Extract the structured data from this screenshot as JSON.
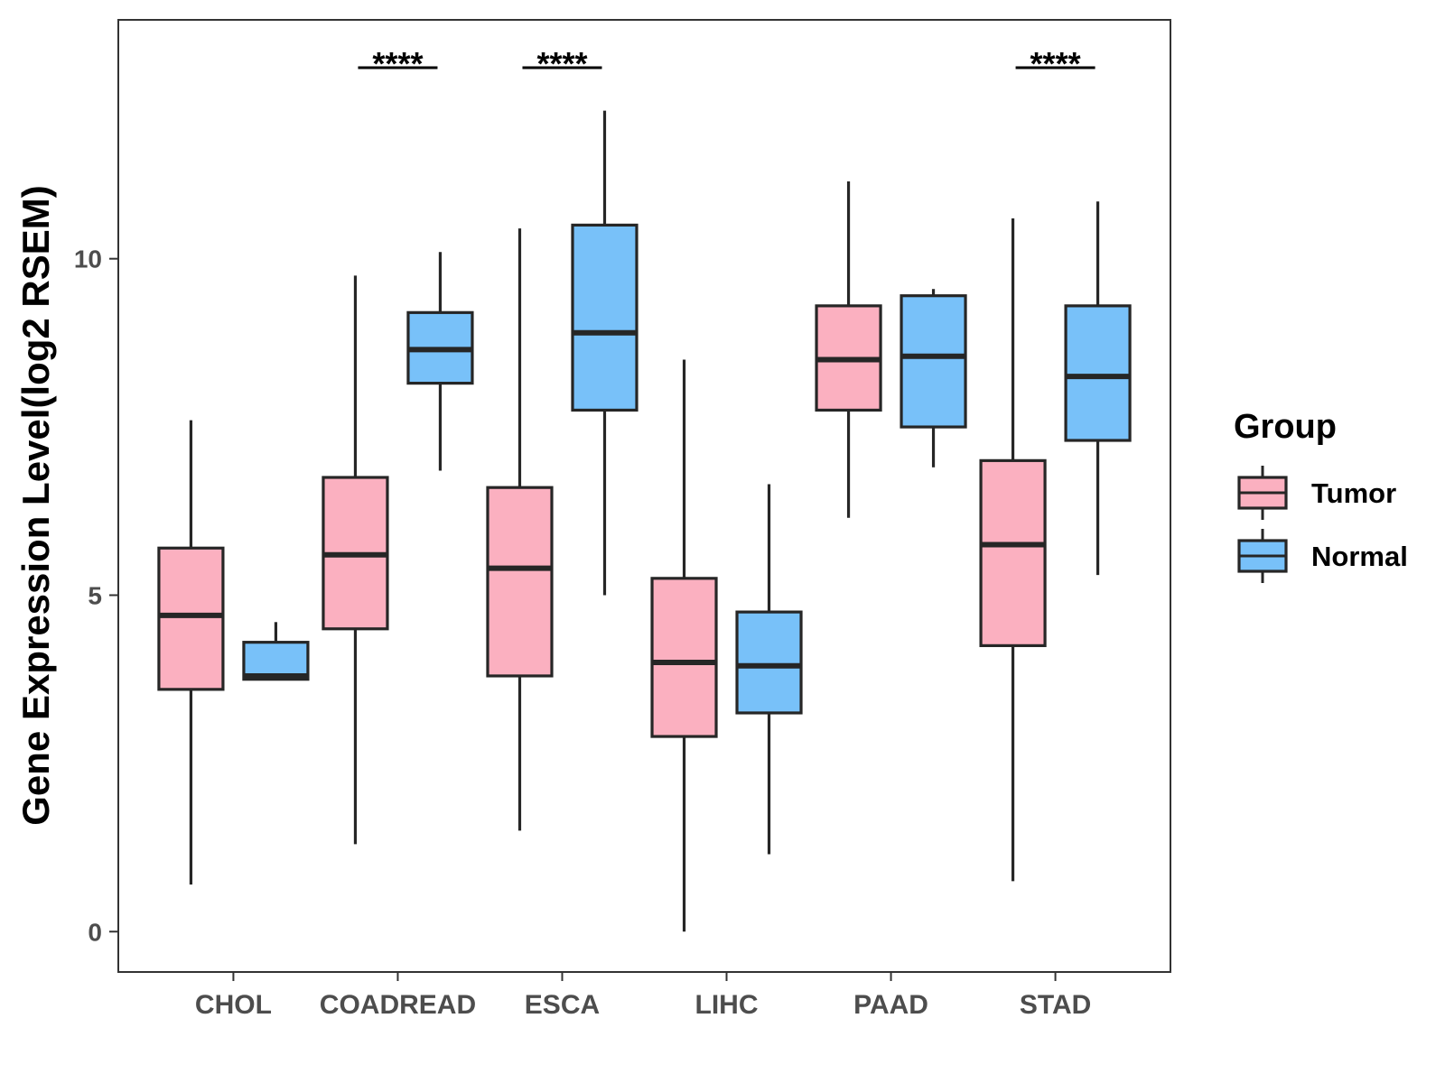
{
  "chart_data": {
    "type": "box",
    "ylabel": "Gene Expression Level(log2 RSEM)",
    "xlabel": "",
    "ylim": [
      -0.6,
      13.55
    ],
    "yticks": [
      0,
      5,
      10
    ],
    "categories": [
      "CHOL",
      "COADREAD",
      "ESCA",
      "LIHC",
      "PAAD",
      "STAD"
    ],
    "legend": {
      "title": "Group",
      "position": "right",
      "items": [
        {
          "name": "Tumor",
          "color": "#fbb0c0"
        },
        {
          "name": "Normal",
          "color": "#78c1f9"
        }
      ]
    },
    "series": [
      {
        "name": "Tumor",
        "color": "#fbb0c0",
        "boxes": [
          {
            "category": "CHOL",
            "min": 0.7,
            "q1": 3.6,
            "median": 4.7,
            "q3": 5.7,
            "max": 7.6
          },
          {
            "category": "COADREAD",
            "min": 1.3,
            "q1": 4.5,
            "median": 5.6,
            "q3": 6.75,
            "max": 9.75
          },
          {
            "category": "ESCA",
            "min": 1.5,
            "q1": 3.8,
            "median": 5.4,
            "q3": 6.6,
            "max": 10.45
          },
          {
            "category": "LIHC",
            "min": 0.0,
            "q1": 2.9,
            "median": 4.0,
            "q3": 5.25,
            "max": 8.5
          },
          {
            "category": "PAAD",
            "min": 6.15,
            "q1": 7.75,
            "median": 8.5,
            "q3": 9.3,
            "max": 11.15
          },
          {
            "category": "STAD",
            "min": 0.75,
            "q1": 4.25,
            "median": 5.75,
            "q3": 7.0,
            "max": 10.6
          }
        ]
      },
      {
        "name": "Normal",
        "color": "#78c1f9",
        "boxes": [
          {
            "category": "CHOL",
            "min": 3.75,
            "q1": 3.75,
            "median": 3.8,
            "q3": 4.3,
            "max": 4.6
          },
          {
            "category": "COADREAD",
            "min": 6.85,
            "q1": 8.15,
            "median": 8.65,
            "q3": 9.2,
            "max": 10.1
          },
          {
            "category": "ESCA",
            "min": 5.0,
            "q1": 7.75,
            "median": 8.9,
            "q3": 10.5,
            "max": 12.2
          },
          {
            "category": "LIHC",
            "min": 1.15,
            "q1": 3.25,
            "median": 3.95,
            "q3": 4.75,
            "max": 6.65
          },
          {
            "category": "PAAD",
            "min": 6.9,
            "q1": 7.5,
            "median": 8.55,
            "q3": 9.45,
            "max": 9.55
          },
          {
            "category": "STAD",
            "min": 5.3,
            "q1": 7.3,
            "median": 8.25,
            "q3": 9.3,
            "max": 10.85
          }
        ]
      }
    ],
    "annotations": [
      {
        "category": "COADREAD",
        "text": "****"
      },
      {
        "category": "ESCA",
        "text": "****"
      },
      {
        "category": "STAD",
        "text": "****"
      }
    ]
  }
}
